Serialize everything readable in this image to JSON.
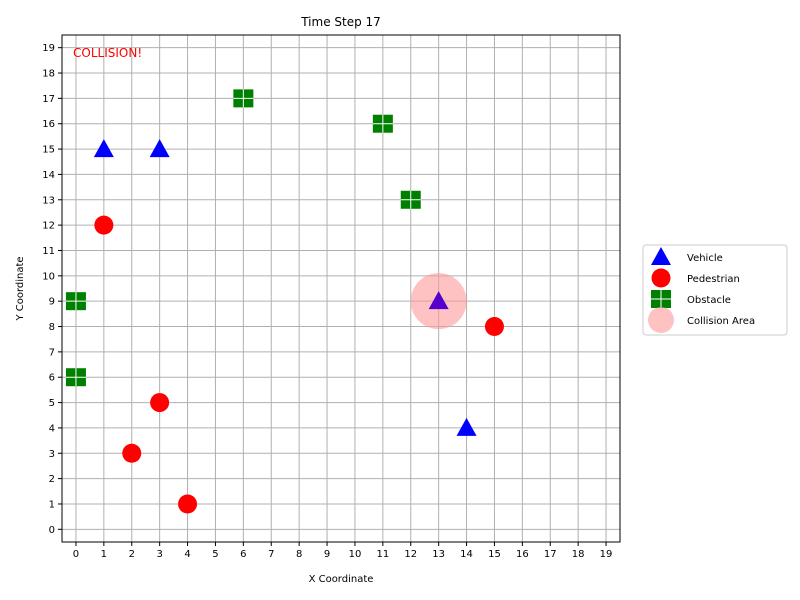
{
  "chart_data": {
    "type": "scatter",
    "title": "Time Step 17",
    "xlabel": "X Coordinate",
    "ylabel": "Y Coordinate",
    "xlim": [
      -0.5,
      19.5
    ],
    "ylim": [
      -0.5,
      19.5
    ],
    "xticks": [
      "0",
      "1",
      "2",
      "3",
      "4",
      "5",
      "6",
      "7",
      "8",
      "9",
      "10",
      "11",
      "12",
      "13",
      "14",
      "15",
      "16",
      "17",
      "18",
      "19"
    ],
    "yticks": [
      "0",
      "1",
      "2",
      "3",
      "4",
      "5",
      "6",
      "7",
      "8",
      "9",
      "10",
      "11",
      "12",
      "13",
      "14",
      "15",
      "16",
      "17",
      "18",
      "19"
    ],
    "grid": true,
    "legend_position": "outside-right",
    "annotation": {
      "text": "COLLISION!",
      "color": "#ff0000"
    },
    "series": [
      {
        "name": "Vehicle",
        "marker": "triangle",
        "color": "#0000ff",
        "points": [
          [
            1,
            15
          ],
          [
            3,
            15
          ],
          [
            13,
            9
          ],
          [
            14,
            4
          ]
        ]
      },
      {
        "name": "Pedestrian",
        "marker": "circle",
        "color": "#ff0000",
        "points": [
          [
            1,
            12
          ],
          [
            3,
            5
          ],
          [
            2,
            3
          ],
          [
            4,
            1
          ],
          [
            15,
            8
          ]
        ]
      },
      {
        "name": "Obstacle",
        "marker": "square",
        "color": "#008000",
        "points": [
          [
            6,
            17
          ],
          [
            11,
            16
          ],
          [
            12,
            13
          ],
          [
            0,
            9
          ],
          [
            0,
            6
          ]
        ]
      },
      {
        "name": "Collision Area",
        "marker": "circle-large",
        "color": "#ff9999",
        "points": [
          [
            13,
            9
          ]
        ]
      }
    ]
  }
}
